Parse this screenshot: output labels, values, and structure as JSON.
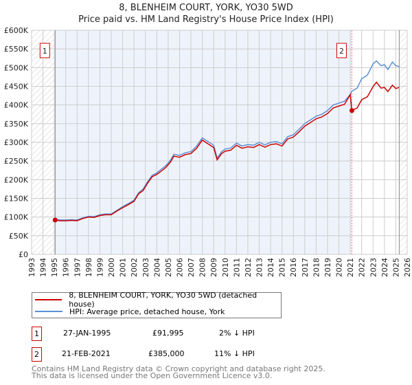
{
  "title": "8, BLENHEIM COURT, YORK, YO30 5WD",
  "subtitle": "Price paid vs. HM Land Registry's House Price Index (HPI)",
  "chart_data": {
    "type": "line",
    "title": "8, BLENHEIM COURT, YORK, YO30 5WD",
    "subtitle": "Price paid vs. HM Land Registry's House Price Index (HPI)",
    "xlim": [
      1993,
      2026
    ],
    "ylim": [
      0,
      600000
    ],
    "grid": true,
    "x_ticks": [
      "1993",
      "1994",
      "1995",
      "1996",
      "1997",
      "1998",
      "1999",
      "2000",
      "2001",
      "2002",
      "2003",
      "2004",
      "2005",
      "2006",
      "2007",
      "2008",
      "2009",
      "2010",
      "2011",
      "2012",
      "2013",
      "2014",
      "2015",
      "2016",
      "2017",
      "2018",
      "2019",
      "2020",
      "2021",
      "2022",
      "2023",
      "2024",
      "2025",
      "2026"
    ],
    "y_ticks": [
      {
        "v": 0,
        "label": "£0"
      },
      {
        "v": 50000,
        "label": "£50K"
      },
      {
        "v": 100000,
        "label": "£100K"
      },
      {
        "v": 150000,
        "label": "£150K"
      },
      {
        "v": 200000,
        "label": "£200K"
      },
      {
        "v": 250000,
        "label": "£250K"
      },
      {
        "v": 300000,
        "label": "£300K"
      },
      {
        "v": 350000,
        "label": "£350K"
      },
      {
        "v": 400000,
        "label": "£400K"
      },
      {
        "v": 450000,
        "label": "£450K"
      },
      {
        "v": 500000,
        "label": "£500K"
      },
      {
        "v": 550000,
        "label": "£550K"
      },
      {
        "v": 600000,
        "label": "£600K"
      }
    ],
    "x": [
      1995.08,
      1995.5,
      1996,
      1996.5,
      1997,
      1997.5,
      1998,
      1998.5,
      1999,
      1999.5,
      2000,
      2000.5,
      2001,
      2001.5,
      2002,
      2002.4,
      2002.8,
      2003.2,
      2003.6,
      2004,
      2004.4,
      2004.8,
      2005.2,
      2005.5,
      2006,
      2006.5,
      2007,
      2007.5,
      2008,
      2008.5,
      2009,
      2009.3,
      2009.7,
      2010,
      2010.5,
      2011,
      2011.5,
      2012,
      2012.5,
      2013,
      2013.5,
      2014,
      2014.5,
      2015,
      2015.5,
      2016,
      2016.5,
      2017,
      2017.5,
      2018,
      2018.5,
      2019,
      2019.5,
      2020,
      2020.5,
      2021,
      2021.14,
      2021.6,
      2022,
      2022.5,
      2023,
      2023.3,
      2023.7,
      2024,
      2024.3,
      2024.7,
      2025,
      2025.3
    ],
    "series": [
      {
        "name": "8, BLENHEIM COURT, YORK, YO30 5WD (detached house)",
        "color": "#cc0000",
        "values": [
          91995,
          90000,
          90000,
          91000,
          90000,
          96000,
          100000,
          99000,
          104000,
          106000,
          106000,
          116000,
          125000,
          133000,
          142000,
          162000,
          171000,
          191000,
          208000,
          214000,
          223000,
          233000,
          247000,
          263000,
          260000,
          267000,
          270000,
          284000,
          306000,
          296000,
          286000,
          253000,
          270000,
          276000,
          279000,
          292000,
          284000,
          288000,
          286000,
          294000,
          287000,
          294000,
          296000,
          290000,
          309000,
          314000,
          328000,
          343000,
          353000,
          363000,
          368000,
          377000,
          392000,
          397000,
          402000,
          428000,
          385000,
          392000,
          414000,
          422000,
          449000,
          461000,
          445000,
          447000,
          436000,
          453000,
          444000,
          447000
        ]
      },
      {
        "name": "HPI: Average price, detached house, York",
        "color": "#5b8fd4",
        "values": [
          94000,
          92000,
          92000,
          93000,
          92000,
          98000,
          102000,
          101000,
          106000,
          108000,
          108000,
          118000,
          128000,
          136000,
          145000,
          165000,
          175000,
          195000,
          212000,
          218000,
          228000,
          238000,
          252000,
          268000,
          265000,
          272000,
          275000,
          290000,
          312000,
          302000,
          292000,
          258000,
          275000,
          282000,
          285000,
          298000,
          290000,
          294000,
          292000,
          300000,
          293000,
          300000,
          302000,
          296000,
          315000,
          320000,
          335000,
          350000,
          360000,
          370000,
          375000,
          385000,
          400000,
          405000,
          410000,
          428000,
          437000,
          445000,
          470000,
          480000,
          510000,
          518000,
          505000,
          508000,
          495000,
          515000,
          505000,
          503000
        ]
      }
    ],
    "sales": [
      {
        "id": "1",
        "year": 1995.07,
        "price": 91995
      },
      {
        "id": "2",
        "year": 2021.14,
        "price": 385000
      }
    ],
    "data_end_year": 2025.3,
    "legend_placement": "below"
  },
  "legend": [
    {
      "label": "8, BLENHEIM COURT, YORK, YO30 5WD (detached house)",
      "color": "#cc0000"
    },
    {
      "label": "HPI: Average price, detached house, York",
      "color": "#5b8fd4"
    }
  ],
  "transactions": [
    {
      "id": "1",
      "date": "27-JAN-1995",
      "price": "£91,995",
      "hpi": "2% ↓ HPI"
    },
    {
      "id": "2",
      "date": "21-FEB-2021",
      "price": "£385,000",
      "hpi": "11% ↓ HPI"
    }
  ],
  "footer": [
    "Contains HM Land Registry data © Crown copyright and database right 2025.",
    "This data is licensed under the Open Government Licence v3.0."
  ]
}
